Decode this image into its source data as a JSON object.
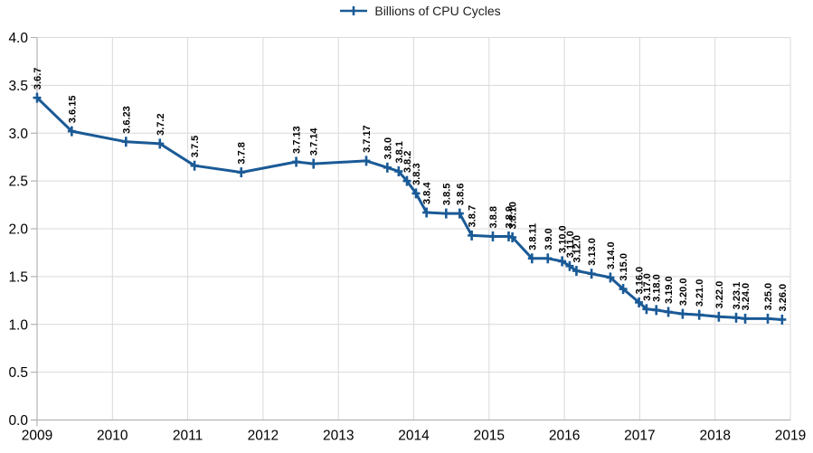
{
  "legend": {
    "label": "Billions of CPU Cycles"
  },
  "chart_data": {
    "type": "line",
    "title": "",
    "xlabel": "",
    "ylabel": "",
    "xlim": [
      2009,
      2019
    ],
    "ylim": [
      0,
      4.0
    ],
    "x_ticks": [
      "2009",
      "2010",
      "2011",
      "2012",
      "2013",
      "2014",
      "2015",
      "2016",
      "2017",
      "2018",
      "2019"
    ],
    "y_ticks": [
      "0.0",
      "0.5",
      "1.0",
      "1.5",
      "2.0",
      "2.5",
      "3.0",
      "3.5",
      "4.0"
    ],
    "grid": true,
    "legend_position": "top-center",
    "marker": "plus",
    "colors": {
      "line": "#1a5a96",
      "grid": "#d9d9d9",
      "axis": "#b3b3b3",
      "text": "#000000"
    },
    "series": [
      {
        "name": "Billions of CPU Cycles",
        "points": [
          {
            "label": "3.6.7",
            "x": 2009.0,
            "y": 3.37
          },
          {
            "label": "3.6.15",
            "x": 2009.46,
            "y": 3.02
          },
          {
            "label": "3.6.23",
            "x": 2010.18,
            "y": 2.91
          },
          {
            "label": "3.7.2",
            "x": 2010.63,
            "y": 2.89
          },
          {
            "label": "3.7.5",
            "x": 2011.09,
            "y": 2.66
          },
          {
            "label": "3.7.8",
            "x": 2011.71,
            "y": 2.59
          },
          {
            "label": "3.7.13",
            "x": 2012.44,
            "y": 2.7
          },
          {
            "label": "3.7.14",
            "x": 2012.67,
            "y": 2.68
          },
          {
            "label": "3.7.17",
            "x": 2013.37,
            "y": 2.71
          },
          {
            "label": "3.8.0",
            "x": 2013.65,
            "y": 2.64
          },
          {
            "label": "3.8.1",
            "x": 2013.8,
            "y": 2.6
          },
          {
            "label": "3.8.2",
            "x": 2013.91,
            "y": 2.5
          },
          {
            "label": "3.8.3",
            "x": 2014.03,
            "y": 2.37
          },
          {
            "label": "3.8.4",
            "x": 2014.17,
            "y": 2.17
          },
          {
            "label": "3.8.5",
            "x": 2014.43,
            "y": 2.16
          },
          {
            "label": "3.8.6",
            "x": 2014.61,
            "y": 2.16
          },
          {
            "label": "3.8.7",
            "x": 2014.77,
            "y": 1.93
          },
          {
            "label": "3.8.8",
            "x": 2015.05,
            "y": 1.92
          },
          {
            "label": "3.8.9",
            "x": 2015.26,
            "y": 1.92
          },
          {
            "label": "3.8.10",
            "x": 2015.31,
            "y": 1.91
          },
          {
            "label": "3.8.11",
            "x": 2015.57,
            "y": 1.69
          },
          {
            "label": "3.9.0",
            "x": 2015.78,
            "y": 1.69
          },
          {
            "label": "3.10.0",
            "x": 2015.97,
            "y": 1.66
          },
          {
            "label": "3.11.0",
            "x": 2016.07,
            "y": 1.61
          },
          {
            "label": "3.12.0",
            "x": 2016.16,
            "y": 1.56
          },
          {
            "label": "3.13.0",
            "x": 2016.36,
            "y": 1.53
          },
          {
            "label": "3.14.0",
            "x": 2016.61,
            "y": 1.49
          },
          {
            "label": "3.15.0",
            "x": 2016.78,
            "y": 1.37
          },
          {
            "label": "3.16.0",
            "x": 2016.99,
            "y": 1.23
          },
          {
            "label": "3.17.0",
            "x": 2017.09,
            "y": 1.16
          },
          {
            "label": "3.18.0",
            "x": 2017.22,
            "y": 1.15
          },
          {
            "label": "3.19.0",
            "x": 2017.38,
            "y": 1.13
          },
          {
            "label": "3.20.0",
            "x": 2017.57,
            "y": 1.11
          },
          {
            "label": "3.21.0",
            "x": 2017.79,
            "y": 1.1
          },
          {
            "label": "3.22.0",
            "x": 2018.05,
            "y": 1.08
          },
          {
            "label": "3.23.1",
            "x": 2018.28,
            "y": 1.07
          },
          {
            "label": "3.24.0",
            "x": 2018.4,
            "y": 1.06
          },
          {
            "label": "3.25.0",
            "x": 2018.7,
            "y": 1.06
          },
          {
            "label": "3.26.0",
            "x": 2018.89,
            "y": 1.05
          }
        ]
      }
    ]
  }
}
